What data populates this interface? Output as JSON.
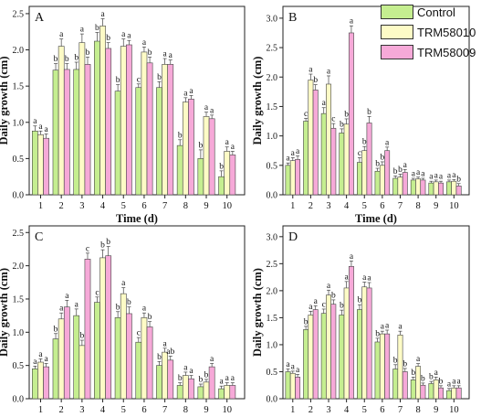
{
  "legend": [
    {
      "label": "Control",
      "color": "#c5ee90"
    },
    {
      "label": "TRM58010",
      "color": "#fdfbc6"
    },
    {
      "label": "TRM58009",
      "color": "#f6a9d8"
    }
  ],
  "chart_data": [
    {
      "type": "bar",
      "panel_label": "A",
      "categories": [
        "1",
        "2",
        "3",
        "4",
        "5",
        "6",
        "7",
        "8",
        "9",
        "10"
      ],
      "xlabel": "Time (d)",
      "ylabel": "Daily growth (cm)",
      "ylim": [
        0,
        2.6
      ],
      "yticks": [
        "0.0",
        "0.5",
        "1.0",
        "1.5",
        "2.0",
        "2.5"
      ],
      "series": [
        {
          "name": "Control",
          "values": [
            0.88,
            1.72,
            1.73,
            2.12,
            1.43,
            1.48,
            1.48,
            0.68,
            0.5,
            0.25
          ],
          "errors": [
            0.07,
            0.09,
            0.1,
            0.12,
            0.09,
            0.05,
            0.08,
            0.08,
            0.12,
            0.08
          ],
          "letters": [
            "a",
            "b",
            "b",
            "b",
            "b",
            "c",
            "b",
            "b",
            "b",
            "b"
          ]
        },
        {
          "name": "TRM58010",
          "values": [
            0.83,
            2.05,
            2.1,
            2.33,
            2.05,
            1.97,
            1.8,
            1.28,
            1.08,
            0.6
          ],
          "errors": [
            0.05,
            0.1,
            0.12,
            0.1,
            0.1,
            0.07,
            0.08,
            0.06,
            0.06,
            0.06
          ],
          "letters": [
            "a",
            "a",
            "a",
            "a",
            "a",
            "a",
            "a",
            "a",
            "a",
            "a"
          ]
        },
        {
          "name": "TRM58009",
          "values": [
            0.78,
            1.73,
            1.8,
            2.02,
            2.07,
            1.82,
            1.8,
            1.32,
            1.05,
            0.55
          ],
          "errors": [
            0.06,
            0.08,
            0.1,
            0.08,
            0.06,
            0.08,
            0.06,
            0.05,
            0.05,
            0.05
          ],
          "letters": [
            "a",
            "b",
            "b",
            "b",
            "a",
            "b",
            "a",
            "a",
            "a",
            "a"
          ]
        }
      ]
    },
    {
      "type": "bar",
      "panel_label": "B",
      "categories": [
        "1",
        "2",
        "3",
        "4",
        "5",
        "6",
        "7",
        "8",
        "9",
        "10"
      ],
      "xlabel": "Time (d)",
      "ylabel": "Daily growth (cm)",
      "ylim": [
        0,
        3.2
      ],
      "yticks": [
        "0.0",
        "0.5",
        "1.0",
        "1.5",
        "2.0",
        "2.5",
        "3.0"
      ],
      "series": [
        {
          "name": "Control",
          "values": [
            0.5,
            1.25,
            1.38,
            1.05,
            0.55,
            0.4,
            0.28,
            0.25,
            0.2,
            0.22
          ],
          "errors": [
            0.04,
            0.05,
            0.1,
            0.07,
            0.08,
            0.05,
            0.04,
            0.03,
            0.03,
            0.03
          ],
          "letters": [
            "a",
            "c",
            "a",
            "b",
            "c",
            "b",
            "b",
            "a",
            "a",
            "a"
          ]
        },
        {
          "name": "TRM58010",
          "values": [
            0.58,
            1.95,
            1.88,
            1.2,
            0.75,
            0.5,
            0.3,
            0.27,
            0.22,
            0.23
          ],
          "errors": [
            0.05,
            0.1,
            0.14,
            0.09,
            0.07,
            0.06,
            0.05,
            0.03,
            0.03,
            0.03
          ],
          "letters": [
            "a",
            "a",
            "a",
            "b",
            "b",
            "b",
            "b",
            "a",
            "a",
            "a"
          ]
        },
        {
          "name": "TRM58009",
          "values": [
            0.6,
            1.78,
            1.13,
            2.75,
            1.22,
            0.75,
            0.38,
            0.25,
            0.2,
            0.15
          ],
          "errors": [
            0.06,
            0.09,
            0.08,
            0.12,
            0.11,
            0.06,
            0.05,
            0.03,
            0.03,
            0.04
          ],
          "letters": [
            "a",
            "b",
            "c",
            "a",
            "b",
            "a",
            "a",
            "a",
            "a",
            "b"
          ]
        }
      ]
    },
    {
      "type": "bar",
      "panel_label": "C",
      "categories": [
        "1",
        "2",
        "3",
        "4",
        "5",
        "6",
        "7",
        "8",
        "9",
        "10"
      ],
      "xlabel": "Time (d)",
      "ylabel": "Daily growth (cm)",
      "ylim": [
        0,
        2.6
      ],
      "yticks": [
        "0.0",
        "0.5",
        "1.0",
        "1.5",
        "2.0",
        "2.5"
      ],
      "series": [
        {
          "name": "Control",
          "values": [
            0.45,
            0.9,
            1.25,
            1.45,
            1.22,
            0.85,
            0.5,
            0.2,
            0.18,
            0.15
          ],
          "errors": [
            0.04,
            0.08,
            0.1,
            0.08,
            0.09,
            0.07,
            0.06,
            0.04,
            0.04,
            0.04
          ],
          "letters": [
            "a",
            "b",
            "a",
            "c",
            "b",
            "c",
            "b",
            "b",
            "b",
            "a"
          ]
        },
        {
          "name": "TRM58010",
          "values": [
            0.55,
            1.2,
            0.8,
            2.12,
            1.58,
            1.22,
            0.7,
            0.35,
            0.25,
            0.2
          ],
          "errors": [
            0.05,
            0.09,
            0.08,
            0.12,
            0.09,
            0.07,
            0.06,
            0.05,
            0.04,
            0.04
          ],
          "letters": [
            "a",
            "a",
            "b",
            "b",
            "a",
            "a",
            "a",
            "a",
            "b",
            "a"
          ]
        },
        {
          "name": "TRM58009",
          "values": [
            0.48,
            1.38,
            2.1,
            2.15,
            1.28,
            1.08,
            0.58,
            0.3,
            0.48,
            0.2
          ],
          "errors": [
            0.05,
            0.1,
            0.09,
            0.14,
            0.1,
            0.08,
            0.06,
            0.05,
            0.05,
            0.04
          ],
          "letters": [
            "a",
            "a",
            "c",
            "b",
            "b",
            "b",
            "ab",
            "a",
            "a",
            "a"
          ]
        }
      ]
    },
    {
      "type": "bar",
      "panel_label": "D",
      "categories": [
        "1",
        "2",
        "3",
        "4",
        "5",
        "6",
        "7",
        "8",
        "9",
        "10"
      ],
      "xlabel": "Time (d)",
      "ylabel": "Daily growth (cm)",
      "ylim": [
        0,
        3.2
      ],
      "yticks": [
        "0.0",
        "0.5",
        "1.0",
        "1.5",
        "2.0",
        "2.5",
        "3.0"
      ],
      "series": [
        {
          "name": "Control",
          "values": [
            0.5,
            1.28,
            1.58,
            1.55,
            1.65,
            1.05,
            0.55,
            0.35,
            0.28,
            0.15
          ],
          "errors": [
            0.05,
            0.06,
            0.08,
            0.09,
            0.09,
            0.07,
            0.08,
            0.05,
            0.04,
            0.04
          ],
          "letters": [
            "a",
            "b",
            "c",
            "b",
            "b",
            "b",
            "b",
            "b",
            "b",
            "a"
          ]
        },
        {
          "name": "TRM58010",
          "values": [
            0.47,
            1.55,
            1.92,
            2.05,
            2.07,
            1.2,
            1.18,
            0.6,
            0.35,
            0.2
          ],
          "errors": [
            0.04,
            0.07,
            0.09,
            0.12,
            0.09,
            0.05,
            0.07,
            0.05,
            0.05,
            0.04
          ],
          "letters": [
            "a",
            "a",
            "a",
            "a",
            "a",
            "a",
            "a",
            "a",
            "a",
            "a"
          ]
        },
        {
          "name": "TRM58009",
          "values": [
            0.4,
            1.65,
            1.75,
            2.45,
            2.05,
            1.2,
            0.5,
            0.25,
            0.2,
            0.2
          ],
          "errors": [
            0.05,
            0.07,
            0.08,
            0.1,
            0.1,
            0.07,
            0.06,
            0.04,
            0.04,
            0.04
          ],
          "letters": [
            "a",
            "a",
            "b",
            "a",
            "a",
            "a",
            "b",
            "b",
            "b",
            "a"
          ]
        }
      ]
    }
  ]
}
